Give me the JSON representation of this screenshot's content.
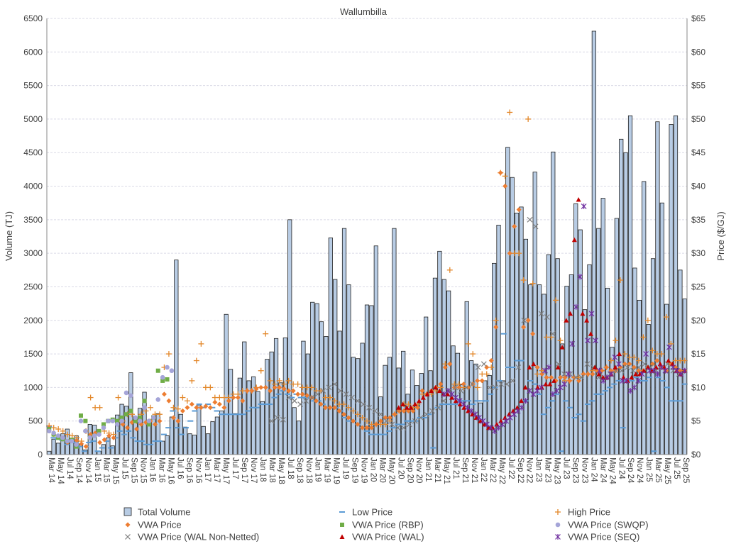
{
  "chart_data": {
    "type": "bar",
    "title": "Wallumbilla",
    "ylabel_left": "Volume (TJ)",
    "ylabel_right": "Price ($/GJ)",
    "ylim_left": [
      0,
      6500
    ],
    "ylim_right": [
      0,
      65
    ],
    "yticks_left": [
      "0",
      "500",
      "1000",
      "1500",
      "2000",
      "2500",
      "3000",
      "3500",
      "4000",
      "4500",
      "5000",
      "5500",
      "6000",
      "6500"
    ],
    "yticks_right": [
      "$0",
      "$5",
      "$10",
      "$15",
      "$20",
      "$25",
      "$30",
      "$35",
      "$40",
      "$45",
      "$50",
      "$55",
      "$60",
      "$65"
    ],
    "grid": true,
    "legend_position": "bottom",
    "x_labels": [
      "Mar 14",
      "May 14",
      "Jul 14",
      "Sep 14",
      "Nov 14",
      "Jan 15",
      "Mar 15",
      "May 15",
      "Jul 15",
      "Sep 15",
      "Nov 15",
      "Jan 16",
      "Mar 16",
      "May 16",
      "Jul 16",
      "Sep 16",
      "Nov 16",
      "Jan 17",
      "Mar 17",
      "May 17",
      "Jul 17",
      "Sep 17",
      "Nov 17",
      "Jan 18",
      "Mar 18",
      "May 18",
      "Jul 18",
      "Sep 18",
      "Nov 18",
      "Jan 19",
      "Mar 19",
      "May 19",
      "Jul 19",
      "Sep 19",
      "Nov 19",
      "Jan 20",
      "Mar 20",
      "May 20",
      "Jul 20",
      "Sep 20",
      "Nov 20",
      "Jan 21",
      "Mar 21",
      "May 21",
      "Jul 21",
      "Sep 21",
      "Nov 21",
      "Jan 22",
      "Mar 22",
      "May 22",
      "Jul 22",
      "Sep 22",
      "Nov 22",
      "Jan 23",
      "Mar 23",
      "May 23",
      "Jul 23",
      "Sep 23",
      "Nov 23",
      "Jan 24",
      "Mar 24",
      "May 24",
      "Jul 24",
      "Sep 24",
      "Nov 24",
      "Jan 25",
      "Mar 25",
      "May 25",
      "Jul 25",
      "Sep 25"
    ],
    "series": [
      {
        "name": "Total Volume",
        "type": "bar",
        "color": "#b8cce4",
        "values": [
          50,
          230,
          170,
          310,
          380,
          200,
          280,
          160,
          70,
          450,
          440,
          50,
          150,
          250,
          130,
          590,
          750,
          720,
          1220,
          560,
          690,
          930,
          440,
          580,
          610,
          200,
          280,
          560,
          2900,
          600,
          410,
          310,
          290,
          740,
          420,
          310,
          490,
          560,
          650,
          2090,
          1270,
          610,
          1140,
          1680,
          1100,
          1160,
          940,
          790,
          1420,
          1530,
          1730,
          1070,
          1740,
          3500,
          700,
          500,
          1690,
          1500,
          2270,
          2250,
          1980,
          1760,
          3230,
          2610,
          1840,
          3370,
          2530,
          1450,
          1430,
          1660,
          2230,
          2220,
          3110,
          860,
          1330,
          1450,
          3370,
          1290,
          1540,
          900,
          1260,
          1030,
          1210,
          2050,
          1250,
          2630,
          3030,
          2610,
          2440,
          1620,
          1510,
          1040,
          2280,
          1400,
          1350,
          770,
          1100,
          1180,
          2850,
          3420,
          1100,
          4580,
          4130,
          3600,
          3690,
          3210,
          2530,
          4210,
          2530,
          2390,
          2980,
          4510,
          2920,
          1650,
          2510,
          2680,
          3740,
          3350,
          2160,
          2830,
          6310,
          3370,
          3820,
          2480,
          1600,
          3520,
          4700,
          4500,
          5050,
          2780,
          2300,
          4070,
          1940,
          2920,
          4960,
          3750,
          2240,
          4920,
          5050,
          2750,
          2320
        ]
      },
      {
        "name": "Low Price",
        "type": "dash",
        "color": "#5b9bd5",
        "values": [
          4.2,
          2.5,
          2.3,
          2.1,
          1.5,
          2.0,
          1.8,
          1.2,
          0.5,
          1.8,
          2.0,
          0.5,
          1.0,
          2.0,
          1.0,
          2.5,
          3.5,
          3.0,
          3.5,
          2.5,
          2.0,
          2.0,
          1.5,
          1.5,
          2.0,
          2.0,
          3.0,
          4.0,
          6.5,
          4.0,
          3.0,
          4.0,
          5.0,
          6.5,
          7.5,
          7.0,
          7.5,
          7.0,
          6.5,
          6.0,
          6.0,
          6.0,
          6.0,
          6.0,
          6.0,
          6.5,
          7.0,
          7.0,
          7.5,
          7.5,
          7.5,
          8.5,
          9.0,
          9.5,
          9.0,
          8.5,
          9.0,
          8.5,
          8.5,
          8.5,
          8.0,
          8.0,
          7.5,
          7.0,
          7.0,
          7.0,
          6.5,
          5.5,
          5.0,
          5.0,
          4.5,
          4.0,
          3.5,
          3.0,
          3.0,
          3.0,
          3.0,
          3.5,
          4.0,
          4.5,
          4.5,
          5.0,
          5.0,
          5.0,
          5.5,
          5.5,
          6.0,
          1.0,
          7.0,
          7.5,
          7.5,
          7.5,
          7.5,
          8.0,
          8.0,
          8.0,
          7.5,
          8.0,
          8.0,
          8.0,
          9.0,
          10.0,
          11.0,
          18.0,
          13.0,
          13.0,
          14.0,
          14.0,
          8.0,
          11.0,
          10.5,
          9.0,
          6.0,
          7.0,
          8.0,
          9.0,
          0.5,
          8.0,
          7.0,
          5.5,
          6.0,
          5.0,
          7.5,
          8.0,
          9.0,
          9.0,
          9.5,
          10.0,
          10.5,
          11.0,
          4.0,
          11.0,
          11.0,
          11.5,
          11.0,
          11.0,
          11.5,
          0.5,
          11.5,
          11.0,
          10.0,
          8.0,
          8.0,
          8.0,
          10.5
        ]
      },
      {
        "name": "High Price",
        "type": "marker",
        "color": "#e3882b",
        "values": [
          4.3,
          4.0,
          3.8,
          3.5,
          3.0,
          2.8,
          2.5,
          2.0,
          3.5,
          8.5,
          7.0,
          7.0,
          3.5,
          3.2,
          3.0,
          8.5,
          5.0,
          6.0,
          6.0,
          5.0,
          6.0,
          6.5,
          7.0,
          6.0,
          6.0,
          13.0,
          15.0,
          7.0,
          6.8,
          8.5,
          8.0,
          11.0,
          14.0,
          16.5,
          10.0,
          10.0,
          8.5,
          8.5,
          8.5,
          8.5,
          9.0,
          9.0,
          9.5,
          9.5,
          9.5,
          10.0,
          12.5,
          18.0,
          11.0,
          10.5,
          11.0,
          10.5,
          11.0,
          10.5,
          10.5,
          10.0,
          10.0,
          10.0,
          9.5,
          9.5,
          8.5,
          8.5,
          8.0,
          7.5,
          7.5,
          7.0,
          6.5,
          6.0,
          5.5,
          5.0,
          4.5,
          4.5,
          4.5,
          4.5,
          5.0,
          6.0,
          6.5,
          7.5,
          7.5,
          7.0,
          7.5,
          9.0,
          9.0,
          9.0,
          9.5,
          10.0,
          13.5,
          27.5,
          10.5,
          10.5,
          10.0,
          16.5,
          15.0,
          10.0,
          12.0,
          12.0,
          13.0,
          20.0,
          42.0,
          41.5,
          51.0,
          30.0,
          30.0,
          26.0,
          50.0,
          25.5,
          12.0,
          12.5,
          17.5,
          17.5,
          23.0,
          17.0,
          11.0,
          11.0,
          11.5,
          11.5,
          12.0,
          12.0,
          12.5,
          12.5,
          12.5,
          13.0,
          14.0,
          17.0,
          26.0,
          15.0,
          14.5,
          14.5,
          14.0,
          17.5,
          20.0,
          15.5,
          15.0,
          15.0,
          20.5,
          16.5,
          14.0,
          14.0,
          14.0
        ]
      },
      {
        "name": "VWA Price",
        "type": "marker",
        "color": "#ed7d31",
        "values": [
          4.0,
          3.0,
          2.6,
          2.3,
          1.8,
          2.2,
          2.1,
          1.6,
          1.2,
          3.0,
          3.2,
          1.8,
          2.2,
          2.8,
          2.5,
          5.0,
          4.5,
          4.0,
          4.8,
          3.8,
          4.5,
          4.8,
          5.0,
          4.5,
          5.0,
          9.0,
          8.0,
          5.5,
          5.0,
          6.5,
          7.0,
          7.5,
          7.0,
          7.0,
          7.2,
          7.0,
          7.8,
          7.5,
          7.0,
          8.0,
          8.5,
          8.5,
          8.0,
          9.5,
          9.5,
          9.8,
          10.0,
          10.0,
          9.5,
          10.0,
          10.0,
          9.8,
          9.5,
          9.5,
          9.0,
          9.0,
          8.8,
          8.5,
          8.0,
          7.5,
          7.0,
          7.0,
          7.0,
          6.5,
          6.0,
          5.5,
          5.0,
          4.5,
          4.0,
          4.0,
          4.0,
          4.5,
          5.0,
          5.5,
          5.5,
          6.0,
          6.5,
          6.5,
          6.5,
          6.5,
          7.0,
          9.5,
          9.0,
          9.5,
          10.0,
          10.5,
          13.0,
          13.5,
          10.0,
          10.0,
          10.5,
          10.0,
          10.5,
          11.0,
          11.0,
          13.0,
          14.0,
          19.0,
          42.0,
          40.0,
          30.0,
          34.0,
          36.5,
          19.0,
          20.0,
          18.0,
          13.0,
          12.0,
          11.5,
          11.5,
          11.0,
          11.5,
          11.5,
          11.0,
          11.5,
          11.0,
          12.0,
          12.0,
          12.0,
          12.5,
          12.5,
          13.0,
          12.5,
          12.5,
          13.0,
          13.5,
          13.5,
          13.0,
          12.5,
          12.5,
          13.0,
          13.5,
          14.0,
          13.0,
          12.5,
          13.5,
          13.0,
          12.5,
          12.5
        ]
      },
      {
        "name": "VWA Price (RBP)",
        "type": "marker",
        "color": "#70ad47",
        "values": [
          3.8,
          3.0,
          2.5,
          2.3,
          2.0,
          2.2,
          1.2,
          5.8,
          5.0,
          2.5,
          2.8,
          3.5,
          4.5,
          5.0,
          5.2,
          5.0,
          5.5,
          6.0,
          6.5,
          5.0,
          5.5,
          8.0,
          4.5,
          5.5,
          12.5,
          11.0,
          11.2
        ]
      },
      {
        "name": "VWA Price (SWQP)",
        "type": "marker",
        "color": "#a5a5d8",
        "values": [
          3.5,
          3.2,
          2.8,
          2.5,
          2.0,
          2.0,
          1.5,
          5.0,
          3.5,
          2.5,
          2.8,
          3.0,
          4.0,
          5.0,
          5.0,
          4.5,
          5.0,
          9.2,
          8.8,
          5.5,
          5.0,
          7.0,
          5.0,
          5.5,
          8.2,
          11.5,
          13.0,
          12.5
        ]
      },
      {
        "name": "VWA Price (WAL Non-Netted)",
        "type": "marker",
        "color": "#7f7f7f",
        "values": [
          5.0,
          5.5,
          5.2,
          8.5,
          8.0,
          7.5,
          8.0,
          8.5,
          9.0,
          9.5,
          10.0,
          10.5,
          9.5,
          9.0,
          8.5,
          8.0,
          7.5,
          7.0,
          6.5,
          6.0,
          5.0,
          4.5,
          4.0,
          4.0,
          4.5,
          5.0,
          5.5,
          6.0,
          6.5,
          7.0,
          8.0,
          9.5,
          10.0,
          9.5,
          10.0,
          10.5,
          13.0,
          13.5,
          10.0,
          10.0,
          10.5,
          10.5,
          11.0,
          13.0,
          20.0,
          35.0,
          34.0,
          21.0,
          20.5,
          18.0,
          13.5,
          12.0,
          12.0,
          11.5,
          11.5,
          13.5,
          13.0,
          11.5,
          11.5,
          12.0,
          12.5,
          12.5,
          13.0,
          12.5,
          13.0,
          13.5,
          13.0,
          12.5,
          13.0,
          13.5,
          12.5,
          12.0,
          12.5
        ]
      },
      {
        "name": "VWA Price (WAL)",
        "type": "marker",
        "color": "#c00000",
        "values": [
          7.0,
          7.5,
          7.0,
          7.0,
          7.5,
          8.0,
          8.5,
          9.0,
          9.5,
          10.0,
          9.5,
          9.0,
          9.0,
          8.5,
          8.0,
          7.5,
          7.0,
          6.5,
          6.0,
          5.5,
          5.0,
          4.5,
          4.0,
          4.0,
          4.5,
          5.0,
          5.5,
          6.0,
          6.5,
          7.0,
          8.0,
          10.0,
          13.0,
          13.5,
          10.0,
          10.0,
          10.5,
          10.5,
          11.0,
          13.0,
          16.0,
          20.0,
          21.0,
          32.0,
          38.0,
          21.0,
          20.0,
          18.0,
          13.0,
          12.0,
          11.5,
          11.5,
          12.0,
          13.0,
          15.0,
          11.5,
          11.0,
          11.5,
          12.0,
          12.0,
          12.5,
          13.0,
          12.5,
          13.0,
          13.5,
          13.0,
          14.0,
          13.5,
          12.5,
          12.0,
          12.5
        ]
      },
      {
        "name": "VWA Price (SEQ)",
        "type": "marker",
        "color": "#7030a0",
        "values": [
          9.0,
          9.5,
          9.0,
          8.5,
          8.0,
          7.5,
          7.0,
          6.5,
          6.0,
          5.5,
          5.0,
          4.5,
          4.0,
          3.5,
          4.0,
          4.5,
          5.0,
          5.5,
          6.0,
          6.5,
          7.0,
          8.0,
          9.5,
          9.0,
          9.5,
          10.0,
          12.5,
          13.0,
          9.0,
          9.5,
          10.0,
          10.5,
          12.0,
          16.5,
          22.0,
          26.5,
          37.0,
          17.0,
          21.0,
          17.0,
          12.5,
          11.0,
          11.5,
          12.0,
          14.5,
          13.5,
          11.0,
          11.0,
          9.5,
          10.0,
          11.0,
          12.0,
          15.0,
          12.5,
          12.5,
          12.0,
          13.0,
          12.5,
          16.0,
          13.0,
          12.5,
          12.0,
          12.5
        ]
      }
    ]
  }
}
